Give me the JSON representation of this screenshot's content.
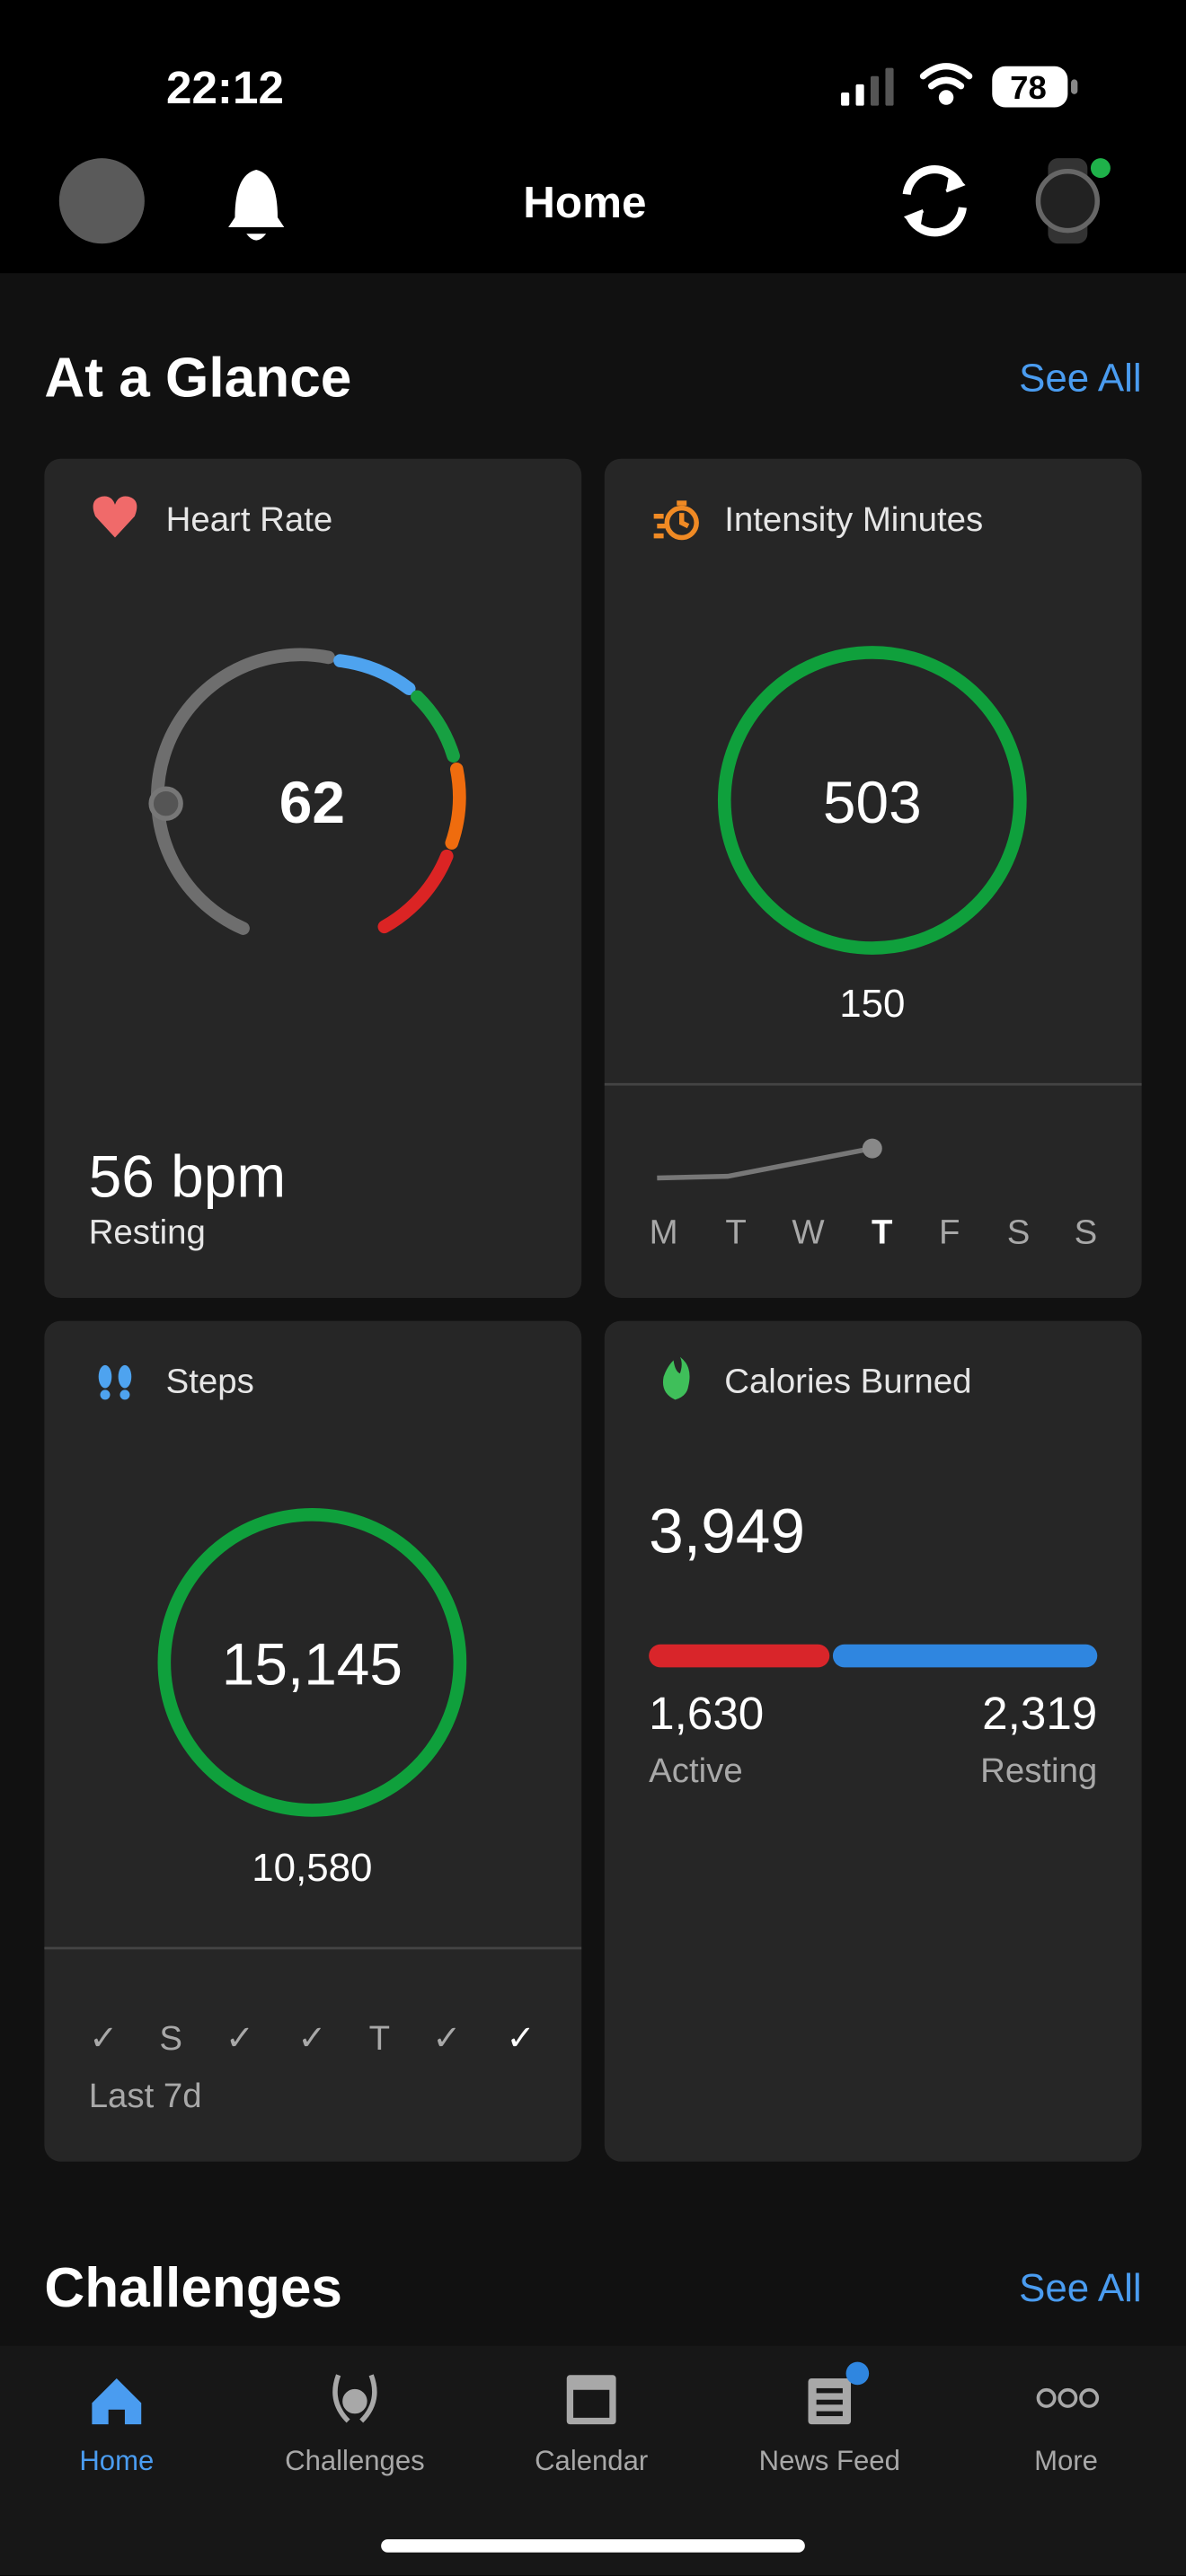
{
  "status_bar": {
    "time": "22:12",
    "battery": "78"
  },
  "header": {
    "title": "Home"
  },
  "at_a_glance": {
    "title": "At a Glance",
    "see_all": "See All",
    "heart_rate": {
      "title": "Heart Rate",
      "value": "62",
      "resting_value": "56 bpm",
      "resting_label": "Resting"
    },
    "intensity_minutes": {
      "title": "Intensity Minutes",
      "value": "503",
      "goal": "150",
      "days": [
        "M",
        "T",
        "W",
        "T",
        "F",
        "S",
        "S"
      ]
    },
    "steps": {
      "title": "Steps",
      "value": "15,145",
      "goal": "10,580",
      "days": [
        "✓",
        "S",
        "✓",
        "✓",
        "T",
        "✓",
        "✓"
      ],
      "period": "Last 7d"
    },
    "calories": {
      "title": "Calories Burned",
      "total": "3,949",
      "active_value": "1,630",
      "active_label": "Active",
      "resting_value": "2,319",
      "resting_label": "Resting"
    }
  },
  "challenges": {
    "title": "Challenges",
    "see_all": "See All"
  },
  "tab_bar": [
    "Home",
    "Challenges",
    "Calendar",
    "News Feed",
    "More"
  ]
}
